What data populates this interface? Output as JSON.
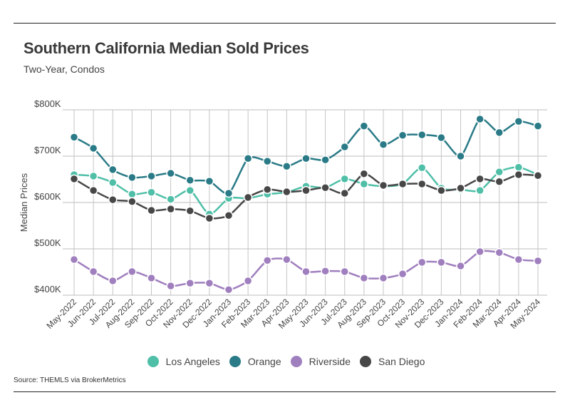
{
  "header": {
    "title": "Southern California Median Sold Prices",
    "subtitle": "Two-Year, Condos"
  },
  "footer": {
    "source": "Source:  THEMLS via BrokerMetrics"
  },
  "chart_data": {
    "type": "line",
    "title": "Southern California Median Sold Prices",
    "subtitle": "Two-Year, Condos",
    "xlabel": "",
    "ylabel": "Median Prices",
    "ylim": [
      400,
      800
    ],
    "y_unit": "thousands USD",
    "yticks": [
      400,
      500,
      600,
      700,
      800
    ],
    "ytick_labels": [
      "$400K",
      "$500K",
      "$600K",
      "$700K",
      "$800K"
    ],
    "grid": true,
    "legend_position": "bottom",
    "categories": [
      "May-2022",
      "Jun-2022",
      "Jul-2022",
      "Aug-2022",
      "Sep-2022",
      "Oct-2022",
      "Nov-2022",
      "Dec-2022",
      "Jan-2023",
      "Feb-2023",
      "Mar-2023",
      "Apr-2023",
      "May-2023",
      "Jun-2023",
      "Jul-2023",
      "Aug-2023",
      "Sep-2023",
      "Oct-2023",
      "Nov-2023",
      "Dec-2023",
      "Jan-2024",
      "Feb-2024",
      "Mar-2024",
      "Apr-2024",
      "May-2024"
    ],
    "series": [
      {
        "name": "Los Angeles",
        "color": "#4fbfa8",
        "values": [
          660,
          657,
          643,
          618,
          622,
          607,
          626,
          575,
          609,
          609,
          618,
          622,
          635,
          632,
          651,
          640,
          635,
          640,
          675,
          631,
          628,
          626,
          666,
          676,
          660
        ]
      },
      {
        "name": "Orange",
        "color": "#2a7b87",
        "values": [
          741,
          717,
          671,
          654,
          657,
          663,
          648,
          646,
          620,
          695,
          689,
          678,
          695,
          692,
          720,
          765,
          725,
          745,
          746,
          740,
          700,
          780,
          751,
          775,
          765
        ]
      },
      {
        "name": "Riverside",
        "color": "#a07fbe",
        "values": [
          477,
          451,
          431,
          451,
          437,
          420,
          426,
          426,
          412,
          431,
          475,
          477,
          451,
          452,
          451,
          437,
          437,
          446,
          471,
          471,
          463,
          494,
          492,
          477,
          474
        ]
      },
      {
        "name": "San Diego",
        "color": "#474747",
        "values": [
          651,
          626,
          606,
          602,
          583,
          586,
          582,
          566,
          572,
          611,
          628,
          623,
          626,
          632,
          620,
          662,
          637,
          640,
          640,
          626,
          631,
          651,
          645,
          660,
          658
        ]
      }
    ]
  }
}
